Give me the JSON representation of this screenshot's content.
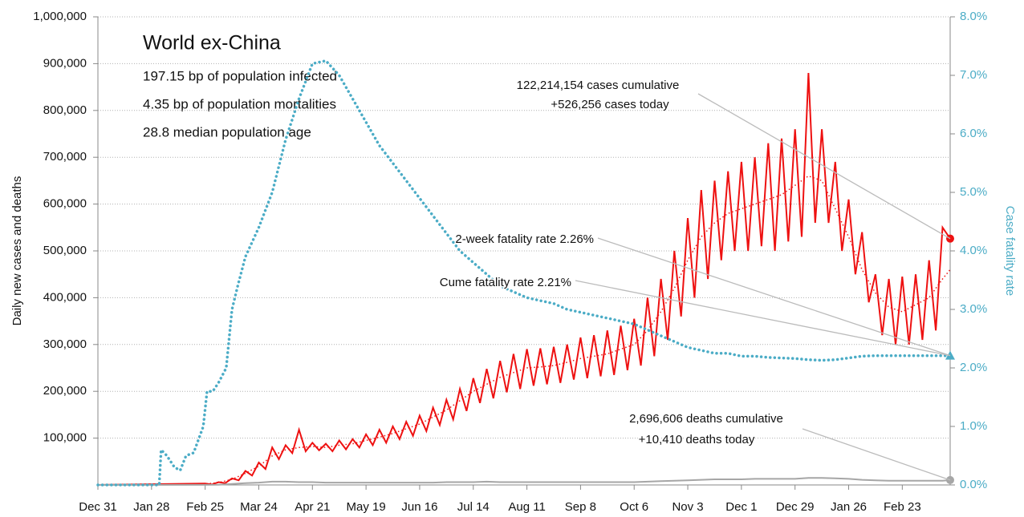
{
  "chart_data": {
    "type": "line",
    "title": "World ex-China",
    "info_lines": [
      "197.15 bp of population infected",
      "4.35 bp of population mortalities",
      "28.8 median population age"
    ],
    "ylabel": "Daily new cases and deaths",
    "y2label": "Case fatality rate",
    "xlim": [
      0,
      445
    ],
    "xticks": [
      {
        "value": 0,
        "label": "Dec 31"
      },
      {
        "value": 28,
        "label": "Jan 28"
      },
      {
        "value": 56,
        "label": "Feb 25"
      },
      {
        "value": 84,
        "label": "Mar 24"
      },
      {
        "value": 112,
        "label": "Apr 21"
      },
      {
        "value": 140,
        "label": "May 19"
      },
      {
        "value": 168,
        "label": "Jun 16"
      },
      {
        "value": 196,
        "label": "Jul 14"
      },
      {
        "value": 224,
        "label": "Aug 11"
      },
      {
        "value": 252,
        "label": "Sep 8"
      },
      {
        "value": 280,
        "label": "Oct 6"
      },
      {
        "value": 308,
        "label": "Nov 3"
      },
      {
        "value": 336,
        "label": "Dec 1"
      },
      {
        "value": 364,
        "label": "Dec 29"
      },
      {
        "value": 392,
        "label": "Jan 26"
      },
      {
        "value": 420,
        "label": "Feb 23"
      }
    ],
    "ylim": [
      0,
      1000000
    ],
    "yticks": [
      {
        "value": 100000,
        "label": "100,000"
      },
      {
        "value": 200000,
        "label": "200,000"
      },
      {
        "value": 300000,
        "label": "300,000"
      },
      {
        "value": 400000,
        "label": "400,000"
      },
      {
        "value": 500000,
        "label": "500,000"
      },
      {
        "value": 600000,
        "label": "600,000"
      },
      {
        "value": 700000,
        "label": "700,000"
      },
      {
        "value": 800000,
        "label": "800,000"
      },
      {
        "value": 900000,
        "label": "900,000"
      },
      {
        "value": 1000000,
        "label": "1,000,000"
      }
    ],
    "y2lim": [
      0,
      8
    ],
    "y2ticks": [
      {
        "value": 0,
        "label": "0.0%"
      },
      {
        "value": 1,
        "label": "1.0%"
      },
      {
        "value": 2,
        "label": "2.0%"
      },
      {
        "value": 3,
        "label": "3.0%"
      },
      {
        "value": 4,
        "label": "4.0%"
      },
      {
        "value": 5,
        "label": "5.0%"
      },
      {
        "value": 6,
        "label": "6.0%"
      },
      {
        "value": 7,
        "label": "7.0%"
      },
      {
        "value": 8,
        "label": "8.0%"
      }
    ],
    "grid": true,
    "series": [
      {
        "color": "#ee1111",
        "style": "solid",
        "end_marker": "circle",
        "x": [
          0,
          56,
          59.5,
          63,
          66.5,
          70,
          73.5,
          77,
          80.5,
          84,
          87.5,
          91,
          94.5,
          98,
          101.5,
          105,
          108.5,
          112,
          115.5,
          119,
          122.5,
          126,
          129.5,
          133,
          136.5,
          140,
          143.5,
          147,
          150.5,
          154,
          157.5,
          161,
          164.5,
          168,
          171.5,
          175,
          178.5,
          182,
          185.5,
          189,
          192.5,
          196,
          199.5,
          203,
          206.5,
          210,
          213.5,
          217,
          220.5,
          224,
          227.5,
          231,
          234.5,
          238,
          241.5,
          245,
          248.5,
          252,
          255.5,
          259,
          262.5,
          266,
          269.5,
          273,
          276.5,
          280,
          283.5,
          287,
          290.5,
          294,
          297.5,
          301,
          304.5,
          308,
          311.5,
          315,
          318.5,
          322,
          325.5,
          329,
          332.5,
          336,
          339.5,
          343,
          346.5,
          350,
          353.5,
          357,
          360.5,
          364,
          367.5,
          371,
          374.5,
          378,
          381.5,
          385,
          388.5,
          392,
          395.5,
          399,
          402.5,
          406,
          409.5,
          413,
          416.5,
          420,
          423.5,
          427,
          430.5,
          434,
          437.5,
          441,
          445
        ],
        "values": [
          0,
          3000,
          1000,
          6000,
          4000,
          14000,
          10000,
          30000,
          20000,
          48000,
          34000,
          80000,
          55000,
          85000,
          68000,
          118000,
          72000,
          90000,
          74000,
          88000,
          72000,
          95000,
          76000,
          98000,
          80000,
          108000,
          85000,
          118000,
          90000,
          125000,
          98000,
          135000,
          105000,
          148000,
          115000,
          165000,
          128000,
          182000,
          140000,
          205000,
          158000,
          228000,
          175000,
          248000,
          185000,
          265000,
          198000,
          280000,
          205000,
          290000,
          212000,
          292000,
          215000,
          295000,
          218000,
          300000,
          225000,
          315000,
          228000,
          320000,
          232000,
          330000,
          235000,
          340000,
          245000,
          355000,
          255000,
          400000,
          275000,
          440000,
          310000,
          500000,
          360000,
          570000,
          400000,
          630000,
          440000,
          650000,
          480000,
          670000,
          500000,
          690000,
          500000,
          700000,
          510000,
          730000,
          500000,
          740000,
          520000,
          760000,
          530000,
          880000,
          560000,
          760000,
          560000,
          690000,
          500000,
          610000,
          450000,
          540000,
          390000,
          450000,
          320000,
          440000,
          300000,
          445000,
          300000,
          450000,
          310000,
          480000,
          330000,
          550000,
          526256
        ]
      },
      {
        "color": "#ee1111",
        "style": "dotted",
        "x": [
          0,
          56,
          63,
          70,
          77,
          84,
          91,
          98,
          105,
          112,
          119,
          126,
          133,
          140,
          147,
          154,
          161,
          168,
          175,
          182,
          189,
          196,
          203,
          210,
          217,
          224,
          231,
          238,
          245,
          252,
          259,
          266,
          273,
          280,
          287,
          294,
          301,
          308,
          315,
          322,
          329,
          336,
          343,
          350,
          357,
          364,
          371,
          378,
          385,
          392,
          399,
          406,
          413,
          420,
          427,
          434,
          441,
          445
        ],
        "values": [
          0,
          2000,
          5000,
          12000,
          25000,
          40000,
          62000,
          75000,
          80000,
          82000,
          80000,
          85000,
          88000,
          95000,
          102000,
          110000,
          120000,
          130000,
          145000,
          160000,
          180000,
          200000,
          215000,
          230000,
          240000,
          250000,
          252000,
          255000,
          262000,
          270000,
          275000,
          280000,
          290000,
          300000,
          330000,
          370000,
          420000,
          480000,
          530000,
          560000,
          580000,
          590000,
          600000,
          610000,
          620000,
          640000,
          660000,
          650000,
          590000,
          530000,
          460000,
          410000,
          380000,
          370000,
          385000,
          400000,
          440000,
          460000
        ]
      },
      {
        "color": "#a6a6a6",
        "style": "solid",
        "end_marker": "circle",
        "x": [
          0,
          56,
          63,
          70,
          77,
          84,
          91,
          98,
          105,
          112,
          119,
          126,
          133,
          140,
          147,
          154,
          161,
          168,
          175,
          182,
          189,
          196,
          203,
          210,
          217,
          224,
          231,
          238,
          245,
          252,
          259,
          266,
          273,
          280,
          287,
          294,
          301,
          308,
          315,
          322,
          329,
          336,
          343,
          350,
          357,
          364,
          371,
          378,
          385,
          392,
          399,
          406,
          413,
          420,
          427,
          434,
          441,
          445
        ],
        "values": [
          0,
          100,
          500,
          2000,
          4000,
          5000,
          7000,
          7000,
          6000,
          6000,
          5000,
          5000,
          5000,
          5000,
          5000,
          5000,
          5000,
          5000,
          5000,
          6000,
          6000,
          6000,
          7000,
          6000,
          6000,
          6000,
          6000,
          6000,
          6000,
          6000,
          6000,
          6000,
          6000,
          6000,
          7000,
          8000,
          9000,
          10000,
          11000,
          12000,
          12000,
          12000,
          13000,
          13000,
          13000,
          13000,
          15000,
          15000,
          14000,
          13000,
          11000,
          10000,
          9000,
          9000,
          9000,
          9000,
          9000,
          10410
        ]
      },
      {
        "color": "#4bacc6",
        "style": "dotted-thick",
        "axis": "y2",
        "end_marker": "triangle",
        "x": [
          0,
          32,
          33,
          36,
          40,
          43,
          46,
          50,
          55,
          57,
          60,
          63,
          67,
          70,
          73,
          77,
          84,
          91,
          98,
          105,
          112,
          119,
          126,
          133,
          140,
          147,
          154,
          161,
          168,
          175,
          182,
          189,
          196,
          203,
          210,
          217,
          224,
          231,
          238,
          245,
          252,
          259,
          266,
          273,
          280,
          287,
          294,
          301,
          308,
          315,
          322,
          329,
          336,
          343,
          350,
          357,
          364,
          371,
          378,
          385,
          392,
          399,
          406,
          413,
          420,
          427,
          434,
          441,
          445
        ],
        "values": [
          0,
          0,
          0.6,
          0.5,
          0.3,
          0.25,
          0.5,
          0.55,
          1.0,
          1.6,
          1.6,
          1.75,
          2.0,
          3.0,
          3.4,
          3.9,
          4.4,
          5.0,
          5.9,
          6.6,
          7.2,
          7.25,
          7.0,
          6.6,
          6.2,
          5.8,
          5.5,
          5.2,
          4.9,
          4.6,
          4.3,
          4.0,
          3.8,
          3.6,
          3.4,
          3.3,
          3.2,
          3.15,
          3.1,
          3.0,
          2.95,
          2.9,
          2.85,
          2.8,
          2.75,
          2.65,
          2.55,
          2.45,
          2.35,
          2.3,
          2.25,
          2.25,
          2.2,
          2.2,
          2.18,
          2.17,
          2.16,
          2.14,
          2.13,
          2.14,
          2.17,
          2.2,
          2.21,
          2.21,
          2.21,
          2.21,
          2.21,
          2.21,
          2.21
        ]
      }
    ],
    "annotations": [
      "122,214,154 cases cumulative",
      "+526,256 cases today",
      "2-week fatality rate 2.26%",
      "Cume fatality rate 2.21%",
      "2,696,606 deaths cumulative",
      "+10,410 deaths today"
    ]
  }
}
